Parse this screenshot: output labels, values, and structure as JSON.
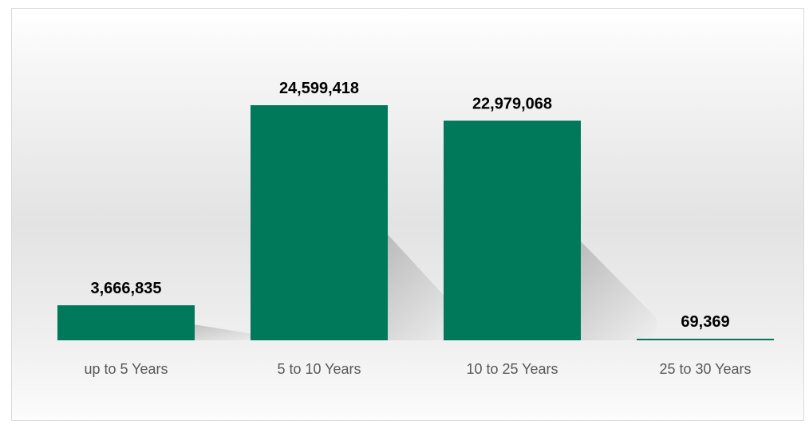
{
  "chart_data": {
    "type": "bar",
    "categories": [
      "up to 5 Years",
      "5 to 10 Years",
      "10 to 25 Years",
      "25 to 30 Years"
    ],
    "values": [
      3666835,
      24599418,
      22979068,
      69369
    ],
    "data_labels": [
      "3,666,835",
      "24,599,418",
      "22,979,068",
      "69,369"
    ],
    "title": "",
    "xlabel": "",
    "ylabel": "",
    "ylim": [
      0,
      24599418
    ],
    "grid": false,
    "legend": "none",
    "bar_color": "#00785a",
    "label_color": "#000000",
    "category_color": "#595959"
  }
}
